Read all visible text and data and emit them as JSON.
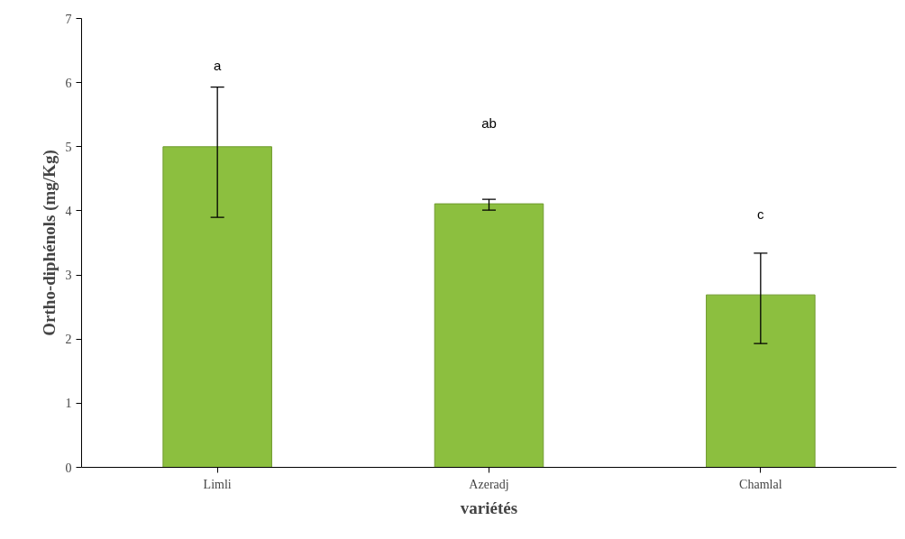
{
  "chart_data": {
    "type": "bar",
    "xlabel": "variétés",
    "ylabel": "Ortho-diphénols (mg/Kg)",
    "categories": [
      "Limli",
      "Azeradj",
      "Chamlal"
    ],
    "values": [
      5.0,
      4.11,
      2.69
    ],
    "errors": [
      [
        3.9,
        5.93
      ],
      [
        4.01,
        4.18
      ],
      [
        1.93,
        3.34
      ]
    ],
    "color": "#8cbf3f",
    "ylim": [
      0,
      7
    ],
    "yticks": [
      0,
      1,
      2,
      3,
      4,
      5,
      6,
      7
    ],
    "grid": false,
    "annotations": [
      "a",
      "ab",
      "c"
    ]
  }
}
